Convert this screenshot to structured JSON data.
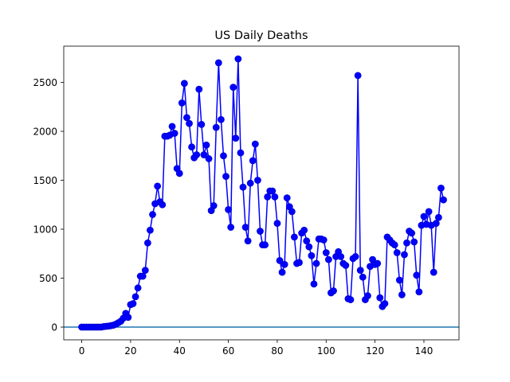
{
  "chart_data": {
    "type": "line",
    "title": "US Daily Deaths",
    "xlabel": "",
    "ylabel": "",
    "xlim": [
      -7.35,
      154.35
    ],
    "ylim": [
      -130,
      2870
    ],
    "xticks": [
      0,
      20,
      40,
      60,
      80,
      100,
      120,
      140
    ],
    "yticks": [
      0,
      500,
      1000,
      1500,
      2000,
      2500
    ],
    "grid": false,
    "legend": "none",
    "series_color": "#0000ff",
    "series_edge_color": "#0000cd",
    "baseline": 0,
    "baseline_color": "#1f77b4",
    "series": [
      {
        "values": [
          0,
          0,
          0,
          0,
          0,
          0,
          0,
          0,
          0,
          5,
          8,
          10,
          15,
          20,
          30,
          45,
          60,
          90,
          140,
          100,
          230,
          240,
          310,
          400,
          520,
          520,
          580,
          860,
          990,
          1150,
          1260,
          1440,
          1280,
          1250,
          1950,
          1950,
          1960,
          2050,
          1980,
          1620,
          1570,
          2290,
          2490,
          2140,
          2080,
          1840,
          1730,
          1760,
          2430,
          2070,
          1760,
          1860,
          1720,
          1190,
          1240,
          2040,
          2700,
          2120,
          1750,
          1540,
          1200,
          1020,
          2450,
          1930,
          2740,
          1780,
          1430,
          1020,
          880,
          1470,
          1700,
          1870,
          1500,
          980,
          840,
          840,
          1330,
          1390,
          1390,
          1330,
          1060,
          680,
          560,
          640,
          1320,
          1230,
          1180,
          920,
          650,
          660,
          960,
          990,
          880,
          820,
          730,
          440,
          650,
          900,
          900,
          890,
          760,
          690,
          350,
          370,
          720,
          770,
          720,
          650,
          630,
          290,
          280,
          700,
          720,
          2570,
          580,
          510,
          280,
          320,
          620,
          690,
          640,
          650,
          300,
          210,
          240,
          920,
          890,
          860,
          840,
          760,
          480,
          330,
          740,
          860,
          980,
          960,
          870,
          530,
          360,
          1040,
          1130,
          1050,
          1180,
          1040,
          560,
          1060,
          1120,
          1420,
          1300
        ]
      }
    ]
  }
}
